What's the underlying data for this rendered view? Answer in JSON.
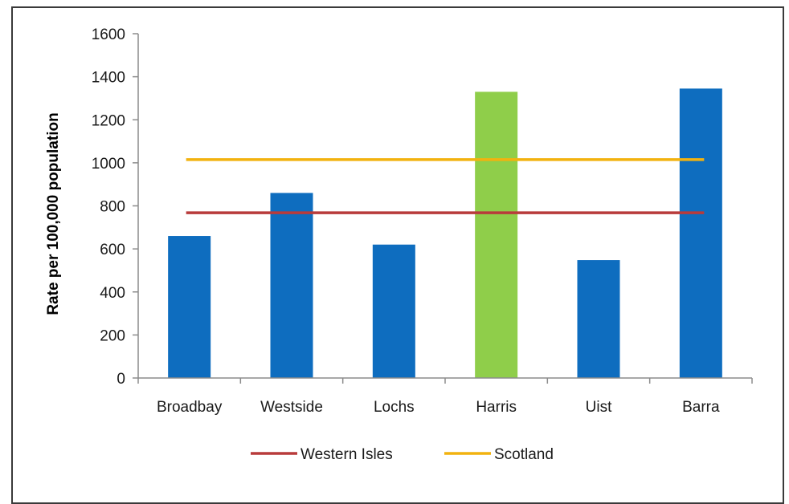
{
  "chart_data": {
    "type": "bar",
    "title": "",
    "xlabel": "",
    "ylabel": "Rate per 100,000 population",
    "ylim": [
      0,
      1600
    ],
    "yticks": [
      0,
      200,
      400,
      600,
      800,
      1000,
      1200,
      1400,
      1600
    ],
    "grid": false,
    "categories": [
      "Broadbay",
      "Westside",
      "Lochs",
      "Harris",
      "Uist",
      "Barra"
    ],
    "values": [
      660,
      860,
      620,
      1330,
      548,
      1345
    ],
    "bar_colors": [
      "#0e6dbf",
      "#0e6dbf",
      "#0e6dbf",
      "#8fce4a",
      "#0e6dbf",
      "#0e6dbf"
    ],
    "reference_lines": [
      {
        "name": "Western Isles",
        "value": 768,
        "color": "#b83b3b"
      },
      {
        "name": "Scotland",
        "value": 1015,
        "color": "#f2b20f"
      }
    ],
    "legend_position": "bottom"
  }
}
